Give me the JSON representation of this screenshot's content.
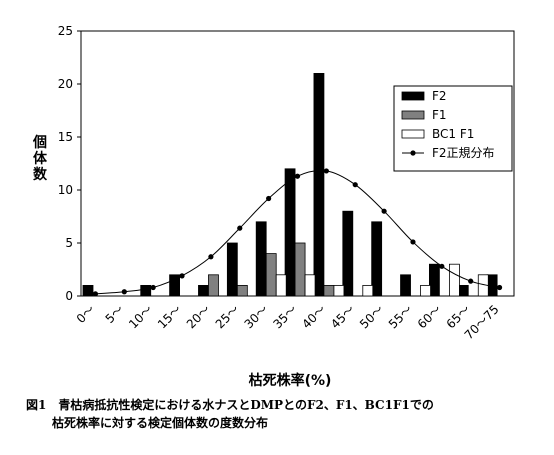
{
  "chart_data": {
    "type": "bar",
    "xlabel": "枯死株率(%)",
    "ylabel": "個体数",
    "ylim": [
      0,
      25
    ],
    "yticks": [
      0,
      5,
      10,
      15,
      20,
      25
    ],
    "categories": [
      "0～",
      "5～",
      "10～",
      "15～",
      "20～",
      "25～",
      "30～",
      "35～",
      "40～",
      "45～",
      "50～",
      "55～",
      "60～",
      "65～",
      "70～75"
    ],
    "series": [
      {
        "name": "F2",
        "type": "bar",
        "color": "#000000",
        "values": [
          1,
          0,
          1,
          2,
          1,
          5,
          7,
          12,
          21,
          8,
          7,
          2,
          3,
          1,
          2
        ]
      },
      {
        "name": "F1",
        "type": "bar",
        "color": "#808080",
        "values": [
          0,
          0,
          0,
          0,
          2,
          1,
          4,
          5,
          1,
          0,
          0,
          0,
          0,
          0,
          0
        ]
      },
      {
        "name": "BC1 F1",
        "type": "bar",
        "color": "#ffffff",
        "values": [
          0,
          0,
          0,
          0,
          0,
          0,
          2,
          2,
          1,
          1,
          0,
          1,
          3,
          2,
          0
        ]
      },
      {
        "name": "F2正規分布",
        "type": "line",
        "color": "#000000",
        "values": [
          0.2,
          0.4,
          0.8,
          1.9,
          3.7,
          6.4,
          9.2,
          11.3,
          11.8,
          10.5,
          8.0,
          5.1,
          2.8,
          1.4,
          0.8
        ]
      }
    ],
    "legend_position": "right",
    "grid": false
  },
  "caption": {
    "line1": "図1　青枯病抵抗性検定における水ナスとDMPとのF2、F1、BC1F1での",
    "line2": "枯死株率に対する検定個体数の度数分布"
  }
}
